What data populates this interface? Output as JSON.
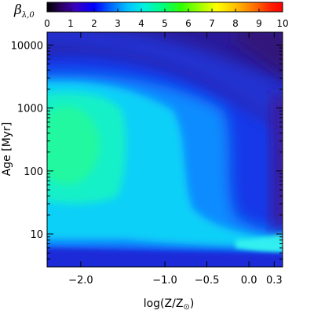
{
  "chart_data": {
    "type": "heatmap",
    "title": "",
    "colorbar": {
      "label": "β",
      "label_sub": "λ,0",
      "range": [
        0,
        10
      ],
      "ticks": [
        0,
        1,
        2,
        3,
        4,
        5,
        6,
        7,
        8,
        9,
        10
      ],
      "tick_labels": [
        "0",
        "1",
        "2",
        "3",
        "4",
        "5",
        "6",
        "7",
        "8",
        "9",
        "10"
      ],
      "colormap": "rainbow",
      "placement": "top"
    },
    "xaxis": {
      "label": "log(Z/Z",
      "label_sub": "⊙",
      "label_close": ")",
      "range": [
        -2.4,
        0.4
      ],
      "ticks": [
        -2.0,
        -1.0,
        -0.5,
        0.0,
        0.3
      ],
      "tick_labels": [
        "−2.0",
        "−1.0",
        "−0.5",
        "0.0",
        "0.3"
      ]
    },
    "yaxis": {
      "label": "Age [Myr]",
      "scale": "log",
      "range": [
        3,
        16000
      ],
      "ticks": [
        10,
        100,
        1000,
        10000
      ],
      "tick_labels": [
        "10",
        "100",
        "1000",
        "10000"
      ]
    },
    "grid": false
  }
}
